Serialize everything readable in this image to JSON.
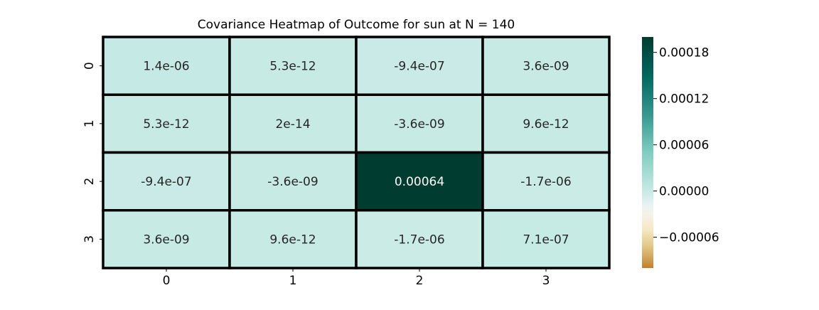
{
  "chart_data": {
    "type": "heatmap",
    "title": "Covariance Heatmap of Outcome for sun at N = 140",
    "xlabel": "",
    "ylabel": "",
    "x_categories": [
      "0",
      "1",
      "2",
      "3"
    ],
    "y_categories": [
      "0",
      "1",
      "2",
      "3"
    ],
    "values": [
      [
        1.4e-06,
        5.3e-12,
        -9.4e-07,
        3.6e-09
      ],
      [
        5.3e-12,
        2e-14,
        -3.6e-09,
        9.6e-12
      ],
      [
        -9.4e-07,
        -3.6e-09,
        0.00064,
        -1.7e-06
      ],
      [
        3.6e-09,
        9.6e-12,
        -1.7e-06,
        7.1e-07
      ]
    ],
    "cell_labels": [
      [
        "1.4e-06",
        "5.3e-12",
        "-9.4e-07",
        "3.6e-09"
      ],
      [
        "5.3e-12",
        "2e-14",
        "-3.6e-09",
        "9.6e-12"
      ],
      [
        "-9.4e-07",
        "-3.6e-09",
        "0.00064",
        "-1.7e-06"
      ],
      [
        "3.6e-09",
        "9.6e-12",
        "-1.7e-06",
        "7.1e-07"
      ]
    ],
    "colormap": "BrBG",
    "colormap_stops": [
      "#bf812d",
      "#dfc27d",
      "#f6e8c3",
      "#f5f5f5",
      "#c7eae5",
      "#80cdc1",
      "#35978f",
      "#01665e",
      "#003c30"
    ],
    "vmin": -0.0001,
    "vmax": 0.0002,
    "colorbar_ticks": [
      0.00018,
      0.00012,
      6e-05,
      0.0,
      -6e-05
    ],
    "colorbar_tick_labels": [
      "0.00018",
      "0.00012",
      "0.00006",
      "0.00000",
      "−0.00006"
    ],
    "cell_border_color": "#000000",
    "grid": false,
    "legend": "colorbar-right"
  }
}
